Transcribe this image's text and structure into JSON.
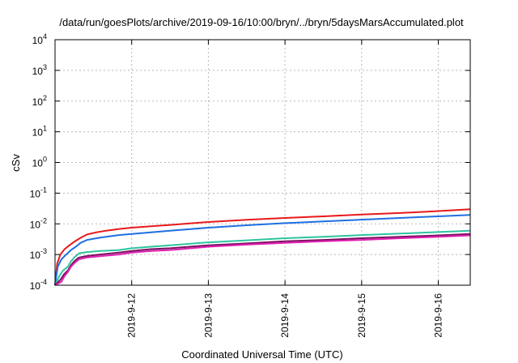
{
  "chart_data": {
    "type": "line",
    "title": "/data/run/goesPlots/archive/2019-09-16/10:00/bryn/../bryn/5daysMarsAccumulated.plot",
    "xlabel": "Coordinated Universal Time (UTC)",
    "ylabel": "cSv",
    "y_scale": "log",
    "ylim_exponents": [
      -4,
      4
    ],
    "y_tick_base": "10",
    "y_ticks": [
      {
        "base": "10",
        "exp": "-4"
      },
      {
        "base": "10",
        "exp": "-3"
      },
      {
        "base": "10",
        "exp": "-2"
      },
      {
        "base": "10",
        "exp": "-1"
      },
      {
        "base": "10",
        "exp": "0"
      },
      {
        "base": "10",
        "exp": "1"
      },
      {
        "base": "10",
        "exp": "2"
      },
      {
        "base": "10",
        "exp": "3"
      },
      {
        "base": "10",
        "exp": "4"
      }
    ],
    "xlim": [
      "2019-09-11 00:00",
      "2019-09-16 10:00"
    ],
    "x_ticks": [
      "2019-9-12",
      "2019-9-13",
      "2019-9-14",
      "2019-9-15",
      "2019-9-16"
    ],
    "x_tick_dates": [
      "2019-09-12",
      "2019-09-13",
      "2019-09-14",
      "2019-09-15",
      "2019-09-16"
    ],
    "grid": true,
    "series": [
      {
        "color": "#e8191b",
        "x": [
          "2019-09-11 00:00",
          "2019-09-11 00:40",
          "2019-09-11 01:40",
          "2019-09-11 03:00",
          "2019-09-11 04:30",
          "2019-09-11 06:00",
          "2019-09-11 08:00",
          "2019-09-11 10:00",
          "2019-09-11 13:00",
          "2019-09-11 16:00",
          "2019-09-11 20:00",
          "2019-09-12 00:00",
          "2019-09-12 06:00",
          "2019-09-12 12:00",
          "2019-09-13 00:00",
          "2019-09-13 12:00",
          "2019-09-14 00:00",
          "2019-09-14 12:00",
          "2019-09-15 00:00",
          "2019-09-15 12:00",
          "2019-09-16 00:00",
          "2019-09-16 10:00"
        ],
        "values": [
          0.0001,
          0.0005,
          0.001,
          0.0015,
          0.002,
          0.0026,
          0.0035,
          0.0045,
          0.0053,
          0.006,
          0.0068,
          0.0075,
          0.0083,
          0.0092,
          0.0115,
          0.0135,
          0.0155,
          0.0175,
          0.02,
          0.0225,
          0.026,
          0.03
        ]
      },
      {
        "color": "#1f6fe0",
        "x": [
          "2019-09-11 00:00",
          "2019-09-11 00:50",
          "2019-09-11 02:00",
          "2019-09-11 03:30",
          "2019-09-11 05:00",
          "2019-09-11 06:30",
          "2019-09-11 08:00",
          "2019-09-11 10:00",
          "2019-09-11 13:00",
          "2019-09-11 16:00",
          "2019-09-11 20:00",
          "2019-09-12 00:00",
          "2019-09-12 06:00",
          "2019-09-12 12:00",
          "2019-09-13 00:00",
          "2019-09-13 12:00",
          "2019-09-14 00:00",
          "2019-09-14 12:00",
          "2019-09-15 00:00",
          "2019-09-15 12:00",
          "2019-09-16 00:00",
          "2019-09-16 10:00"
        ],
        "values": [
          0.0001,
          0.0004,
          0.0007,
          0.001,
          0.0014,
          0.0018,
          0.0024,
          0.003,
          0.0034,
          0.0038,
          0.0043,
          0.0047,
          0.0053,
          0.006,
          0.0075,
          0.009,
          0.0105,
          0.012,
          0.0137,
          0.0155,
          0.0175,
          0.0195
        ]
      },
      {
        "color": "#2ec4a0",
        "x": [
          "2019-09-11 00:00",
          "2019-09-11 01:20",
          "2019-09-11 02:30",
          "2019-09-11 04:00",
          "2019-09-11 05:00",
          "2019-09-11 06:00",
          "2019-09-11 07:30",
          "2019-09-11 10:00",
          "2019-09-11 14:00",
          "2019-09-11 20:00",
          "2019-09-12 00:00",
          "2019-09-12 06:00",
          "2019-09-12 12:00",
          "2019-09-13 00:00",
          "2019-09-13 12:00",
          "2019-09-14 00:00",
          "2019-09-14 12:00",
          "2019-09-15 00:00",
          "2019-09-15 12:00",
          "2019-09-16 00:00",
          "2019-09-16 10:00"
        ],
        "values": [
          0.0001,
          0.0002,
          0.0003,
          0.0004,
          0.0006,
          0.0008,
          0.0011,
          0.0012,
          0.0013,
          0.0014,
          0.0016,
          0.0018,
          0.002,
          0.0025,
          0.0029,
          0.0034,
          0.0038,
          0.0043,
          0.0048,
          0.0054,
          0.006
        ]
      },
      {
        "color": "#7a1060",
        "x": [
          "2019-09-11 00:00",
          "2019-09-11 01:40",
          "2019-09-11 02:50",
          "2019-09-11 04:00",
          "2019-09-11 05:00",
          "2019-09-11 06:00",
          "2019-09-11 07:30",
          "2019-09-11 10:00",
          "2019-09-11 14:00",
          "2019-09-11 20:00",
          "2019-09-12 00:00",
          "2019-09-12 06:00",
          "2019-09-12 12:00",
          "2019-09-13 00:00",
          "2019-09-13 12:00",
          "2019-09-14 00:00",
          "2019-09-14 12:00",
          "2019-09-15 00:00",
          "2019-09-15 12:00",
          "2019-09-16 00:00",
          "2019-09-16 10:00"
        ],
        "values": [
          0.0001,
          0.00015,
          0.00023,
          0.0003,
          0.00045,
          0.0006,
          0.0008,
          0.0009,
          0.001,
          0.00115,
          0.0013,
          0.0015,
          0.0016,
          0.002,
          0.0023,
          0.0027,
          0.003,
          0.0034,
          0.0038,
          0.0042,
          0.0047
        ]
      },
      {
        "color": "#e020b0",
        "x": [
          "2019-09-11 00:00",
          "2019-09-11 02:00",
          "2019-09-11 03:00",
          "2019-09-11 04:00",
          "2019-09-11 05:00",
          "2019-09-11 06:00",
          "2019-09-11 07:30",
          "2019-09-11 10:00",
          "2019-09-11 14:00",
          "2019-09-11 20:00",
          "2019-09-12 00:00",
          "2019-09-12 06:00",
          "2019-09-12 12:00",
          "2019-09-13 00:00",
          "2019-09-13 12:00",
          "2019-09-14 00:00",
          "2019-09-14 12:00",
          "2019-09-15 00:00",
          "2019-09-15 12:00",
          "2019-09-16 00:00",
          "2019-09-16 10:00"
        ],
        "values": [
          0.0001,
          0.00013,
          0.0002,
          0.00027,
          0.0004,
          0.00052,
          0.0007,
          0.0008,
          0.00088,
          0.001,
          0.00115,
          0.0013,
          0.0014,
          0.0018,
          0.0021,
          0.0024,
          0.0027,
          0.003,
          0.0034,
          0.0038,
          0.0042
        ]
      }
    ]
  }
}
